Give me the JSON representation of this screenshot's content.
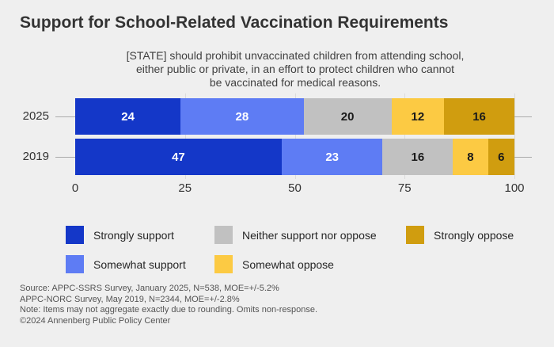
{
  "title": "Support for School-Related Vaccination Requirements",
  "subtitle": {
    "lines": [
      "[STATE] should prohibit unvaccinated children from attending school,",
      "either public or private, in an effort to protect children who cannot",
      "be vaccinated for medical reasons."
    ]
  },
  "chart_data": {
    "type": "bar",
    "orientation": "horizontal",
    "stacked": true,
    "categories": [
      "2025",
      "2019"
    ],
    "series": [
      {
        "name": "Strongly support",
        "color": "#1437C8",
        "values": [
          24,
          47
        ]
      },
      {
        "name": "Somewhat support",
        "color": "#5E7CF4",
        "values": [
          28,
          23
        ]
      },
      {
        "name": "Neither support nor oppose",
        "color": "#C1C1C1",
        "values": [
          20,
          16
        ]
      },
      {
        "name": "Somewhat oppose",
        "color": "#FCCA43",
        "values": [
          12,
          8
        ]
      },
      {
        "name": "Strongly oppose",
        "color": "#D09D0F",
        "values": [
          16,
          6
        ]
      }
    ],
    "value_label_colors": [
      "#FFFFFF",
      "#FFFFFF",
      "#1A1A1A",
      "#1A1A1A",
      "#1A1A1A"
    ],
    "xticks": [
      0,
      25,
      50,
      75,
      100
    ],
    "xlim": [
      0,
      100
    ],
    "grid": true,
    "legend_position": "bottom"
  },
  "legend": {
    "items": [
      {
        "label": "Strongly support",
        "color": "#1437C8"
      },
      {
        "label": "Neither support nor oppose",
        "color": "#C1C1C1"
      },
      {
        "label": "Strongly oppose",
        "color": "#D09D0F"
      },
      {
        "label": "Somewhat support",
        "color": "#5E7CF4"
      },
      {
        "label": "Somewhat oppose",
        "color": "#FCCA43"
      }
    ]
  },
  "footer": {
    "lines": [
      "Source: APPC-SSRS Survey, January 2025, N=538, MOE=+/-5.2%",
      "APPC-NORC Survey, May 2019, N=2344, MOE=+/-2.8%",
      "Note: Items may not aggregate exactly due to rounding. Omits non-response.",
      "©2024 Annenberg Public Policy Center"
    ]
  },
  "colors": {
    "background": "#EFEFEF",
    "grid": "#DBDBDB",
    "category_line": "#ABABAB",
    "text": "#333333",
    "footer_text": "#545454"
  }
}
